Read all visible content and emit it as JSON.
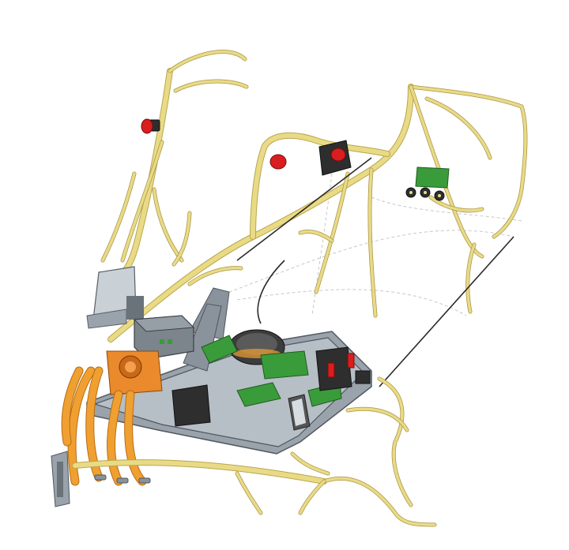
{
  "image": {
    "subject": "wiring-harness-assembly",
    "palette": {
      "background": "#ffffff",
      "harness": "#e9db86",
      "hv_cable": "#f0a030",
      "pcb": "#3a9b3a",
      "frame": "#9aa3ab",
      "accent_red": "#d81e1e"
    }
  }
}
